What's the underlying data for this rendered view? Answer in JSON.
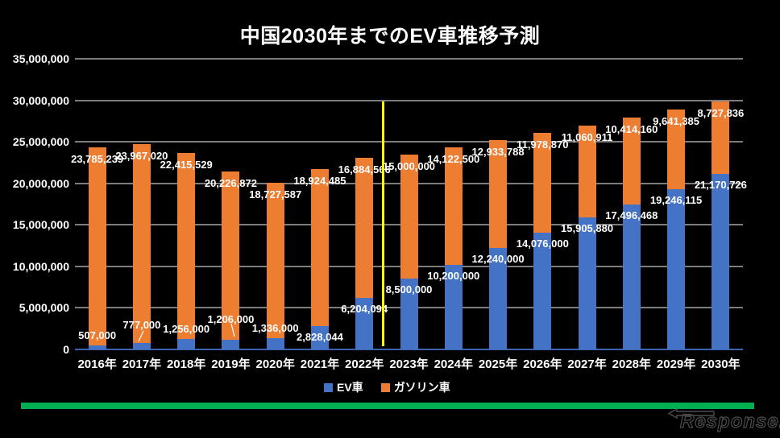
{
  "title": "中国2030年までのEV車推移予測",
  "watermark": "Response.",
  "colors": {
    "background": "#000000",
    "ev": "#4472C4",
    "gasoline": "#ED7D31",
    "divider_line": "#FFFF00",
    "footer_bar": "#00B050",
    "grid": "#7D7D7D",
    "axis": "#3E63AE"
  },
  "chart_data": {
    "type": "bar",
    "stacked": true,
    "title": "中国2030年までのEV車推移予測",
    "categories": [
      "2016年",
      "2017年",
      "2018年",
      "2019年",
      "2020年",
      "2021年",
      "2022年",
      "2023年",
      "2024年",
      "2025年",
      "2026年",
      "2027年",
      "2028年",
      "2029年",
      "2030年"
    ],
    "series": [
      {
        "name": "EV車",
        "color": "#4472C4",
        "values": [
          507000,
          777000,
          1256000,
          1206000,
          1336000,
          2828044,
          6204094,
          8500000,
          10200000,
          12240000,
          14076000,
          15905880,
          17496468,
          19246115,
          21170726
        ],
        "labels": [
          "507,000",
          "777,000",
          "1,256,000",
          "1,206,000",
          "1,336,000",
          "2,828,044",
          "6,204,094",
          "8,500,000",
          "10,200,000",
          "12,240,000",
          "14,076,000",
          "15,905,880",
          "17,496,468",
          "19,246,115",
          "21,170,726"
        ]
      },
      {
        "name": "ガソリン車",
        "color": "#ED7D31",
        "values": [
          23785239,
          23967020,
          22415529,
          20226872,
          18727587,
          18924485,
          16884566,
          15000000,
          14122500,
          12933788,
          11978870,
          11060911,
          10414160,
          9641385,
          8727836
        ],
        "labels": [
          "23,785,239",
          "23,967,020",
          "22,415,529",
          "20,226,872",
          "18,727,587",
          "18,924,485",
          "16,884,566",
          "15,000,000",
          "14,122,500",
          "12,933,788",
          "11,978,870",
          "11,060,911",
          "10,414,160",
          "9,641,385",
          "8,727,836"
        ]
      }
    ],
    "ylim": [
      0,
      35000000
    ],
    "y_ticks": [
      "0",
      "5,000,000",
      "10,000,000",
      "15,000,000",
      "20,000,000",
      "25,000,000",
      "30,000,000",
      "35,000,000"
    ],
    "grid": true,
    "legend_position": "bottom",
    "annotation": "yellow vertical divider line between 2022年 and 2023年 (actual vs forecast)"
  }
}
